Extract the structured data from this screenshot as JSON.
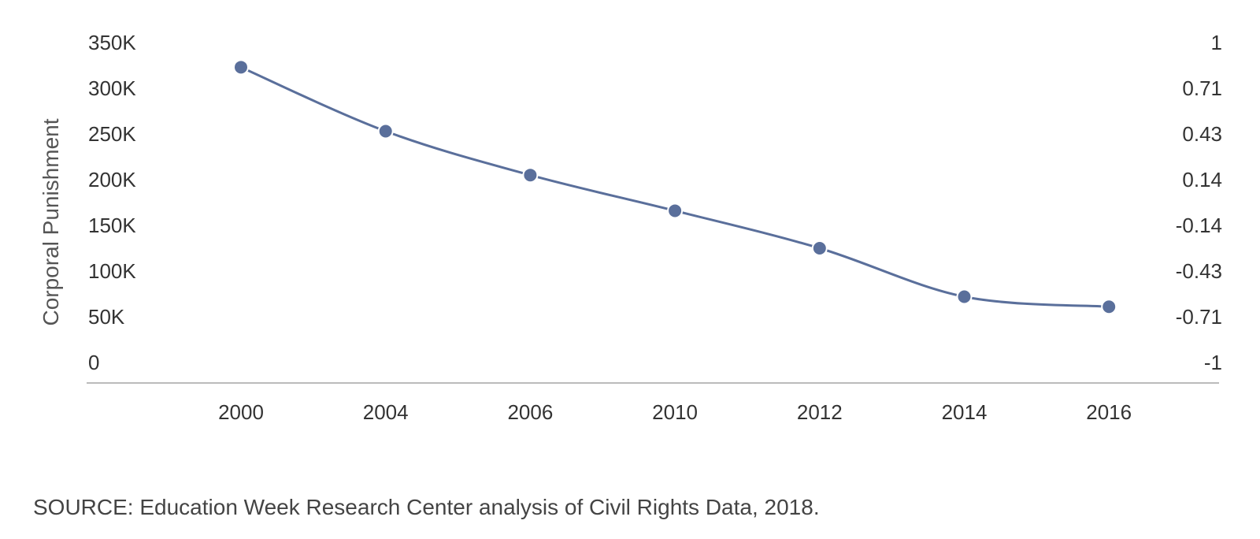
{
  "chart_data": {
    "type": "line",
    "title": "",
    "xlabel": "",
    "ylabel": "Corporal Punishment",
    "categories": [
      "2000",
      "2004",
      "2006",
      "2010",
      "2012",
      "2014",
      "2016"
    ],
    "series": [
      {
        "values": [
          323000,
          253000,
          205000,
          166000,
          125000,
          72000,
          61000
        ]
      }
    ],
    "ylim": [
      0,
      350000
    ],
    "y_ticks": [
      "0",
      "50K",
      "100K",
      "150K",
      "200K",
      "250K",
      "300K",
      "350K"
    ],
    "y2_ticks": [
      "-1",
      "-0.71",
      "-0.43",
      "-0.14",
      "0.14",
      "0.43",
      "0.71",
      "1"
    ],
    "line_color": "#5a6f9b",
    "marker_color": "#5a6f9b",
    "grid": false,
    "legend": "none"
  },
  "source": "SOURCE: Education Week Research Center analysis of Civil Rights Data, 2018."
}
